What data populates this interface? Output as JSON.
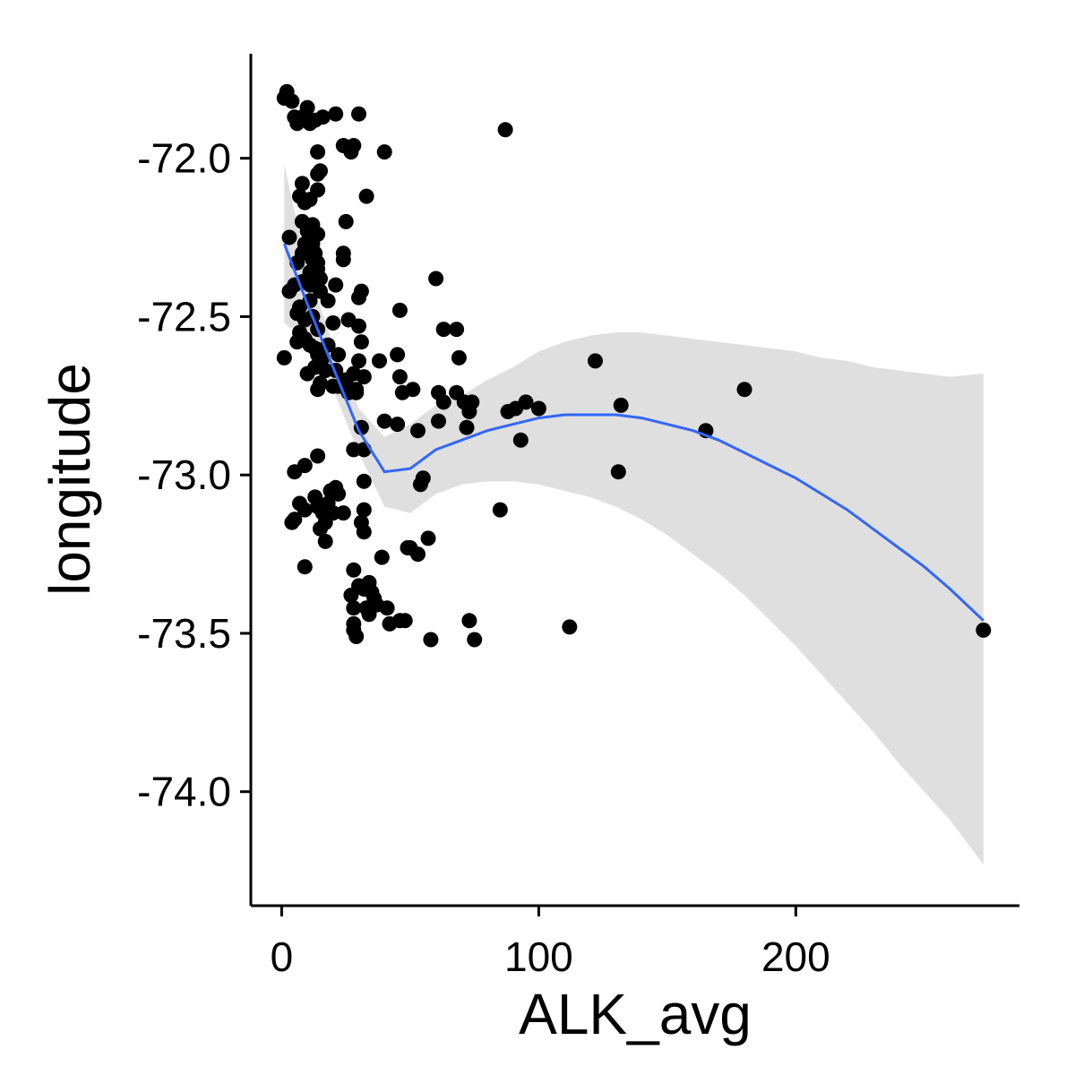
{
  "chart_data": {
    "type": "scatter",
    "title": "",
    "xlabel": "ALK_avg",
    "ylabel": "longitude",
    "xlim": [
      -12,
      287
    ],
    "ylim": [
      -74.36,
      -71.67
    ],
    "x_ticks": [
      0,
      100,
      200
    ],
    "x_tick_labels": [
      "0",
      "100",
      "200"
    ],
    "y_ticks": [
      -72.0,
      -72.5,
      -73.0,
      -73.5,
      -74.0
    ],
    "y_tick_labels": [
      "-72.0",
      "-72.5",
      "-73.0",
      "-73.5",
      "-74.0"
    ],
    "grid": false,
    "legend": "none",
    "colors": {
      "points": "#000000",
      "smooth_line": "#3366FF",
      "confidence_band": "#d9d9d9",
      "axes": "#000000"
    },
    "points": [
      [
        1,
        -71.81
      ],
      [
        2,
        -71.79
      ],
      [
        4,
        -71.82
      ],
      [
        5,
        -71.87
      ],
      [
        6,
        -71.89
      ],
      [
        8,
        -71.87
      ],
      [
        10,
        -71.84
      ],
      [
        11,
        -71.89
      ],
      [
        13,
        -71.88
      ],
      [
        16,
        -71.87
      ],
      [
        21,
        -71.86
      ],
      [
        30,
        -71.86
      ],
      [
        87,
        -71.91
      ],
      [
        14,
        -71.98
      ],
      [
        24,
        -71.96
      ],
      [
        28,
        -71.96
      ],
      [
        27,
        -71.98
      ],
      [
        40,
        -71.98
      ],
      [
        15,
        -72.04
      ],
      [
        14,
        -72.05
      ],
      [
        8,
        -72.08
      ],
      [
        14,
        -72.1
      ],
      [
        7,
        -72.12
      ],
      [
        11,
        -72.13
      ],
      [
        9,
        -72.14
      ],
      [
        33,
        -72.12
      ],
      [
        8,
        -72.2
      ],
      [
        12,
        -72.21
      ],
      [
        25,
        -72.2
      ],
      [
        10,
        -72.23
      ],
      [
        14,
        -72.24
      ],
      [
        12,
        -72.27
      ],
      [
        3,
        -72.25
      ],
      [
        9,
        -72.27
      ],
      [
        8,
        -72.3
      ],
      [
        13,
        -72.3
      ],
      [
        24,
        -72.3
      ],
      [
        12,
        -72.32
      ],
      [
        14,
        -72.33
      ],
      [
        6,
        -72.33
      ],
      [
        24,
        -72.32
      ],
      [
        14,
        -72.35
      ],
      [
        11,
        -72.36
      ],
      [
        15,
        -72.38
      ],
      [
        8,
        -72.39
      ],
      [
        5,
        -72.4
      ],
      [
        11,
        -72.4
      ],
      [
        60,
        -72.38
      ],
      [
        21,
        -72.4
      ],
      [
        15,
        -72.42
      ],
      [
        3,
        -72.42
      ],
      [
        31,
        -72.42
      ],
      [
        30,
        -72.44
      ],
      [
        11,
        -72.45
      ],
      [
        18,
        -72.45
      ],
      [
        7,
        -72.47
      ],
      [
        6,
        -72.49
      ],
      [
        9,
        -72.51
      ],
      [
        46,
        -72.48
      ],
      [
        12,
        -72.5
      ],
      [
        20,
        -72.52
      ],
      [
        26,
        -72.51
      ],
      [
        30,
        -72.53
      ],
      [
        63,
        -72.54
      ],
      [
        68,
        -72.54
      ],
      [
        14,
        -72.54
      ],
      [
        7,
        -72.55
      ],
      [
        9,
        -72.57
      ],
      [
        6,
        -72.58
      ],
      [
        11,
        -72.59
      ],
      [
        18,
        -72.59
      ],
      [
        31,
        -72.58
      ],
      [
        13,
        -72.6
      ],
      [
        14,
        -72.62
      ],
      [
        22,
        -72.62
      ],
      [
        16,
        -72.63
      ],
      [
        1,
        -72.63
      ],
      [
        30,
        -72.64
      ],
      [
        38,
        -72.64
      ],
      [
        45,
        -72.62
      ],
      [
        69,
        -72.63
      ],
      [
        122,
        -72.64
      ],
      [
        13,
        -72.66
      ],
      [
        17,
        -72.67
      ],
      [
        10,
        -72.68
      ],
      [
        21,
        -72.67
      ],
      [
        28,
        -72.68
      ],
      [
        46,
        -72.69
      ],
      [
        32,
        -72.69
      ],
      [
        15,
        -72.71
      ],
      [
        22,
        -72.72
      ],
      [
        25,
        -72.7
      ],
      [
        29,
        -72.73
      ],
      [
        14,
        -72.73
      ],
      [
        20,
        -72.72
      ],
      [
        26,
        -72.74
      ],
      [
        29,
        -72.74
      ],
      [
        47,
        -72.74
      ],
      [
        51,
        -72.73
      ],
      [
        61,
        -72.74
      ],
      [
        68,
        -72.74
      ],
      [
        180,
        -72.73
      ],
      [
        63,
        -72.77
      ],
      [
        71,
        -72.77
      ],
      [
        74,
        -72.77
      ],
      [
        95,
        -72.77
      ],
      [
        132,
        -72.78
      ],
      [
        91,
        -72.79
      ],
      [
        100,
        -72.79
      ],
      [
        73,
        -72.8
      ],
      [
        88,
        -72.8
      ],
      [
        40,
        -72.83
      ],
      [
        61,
        -72.83
      ],
      [
        45,
        -72.84
      ],
      [
        31,
        -72.85
      ],
      [
        53,
        -72.86
      ],
      [
        72,
        -72.85
      ],
      [
        165,
        -72.86
      ],
      [
        93,
        -72.89
      ],
      [
        28,
        -72.92
      ],
      [
        32,
        -72.92
      ],
      [
        14,
        -72.94
      ],
      [
        9,
        -72.97
      ],
      [
        5,
        -72.99
      ],
      [
        131,
        -72.99
      ],
      [
        55,
        -73.01
      ],
      [
        32,
        -73.02
      ],
      [
        54,
        -73.03
      ],
      [
        21,
        -73.04
      ],
      [
        19,
        -73.05
      ],
      [
        22,
        -73.06
      ],
      [
        13,
        -73.07
      ],
      [
        7,
        -73.09
      ],
      [
        18,
        -73.09
      ],
      [
        14,
        -73.1
      ],
      [
        9,
        -73.11
      ],
      [
        16,
        -73.12
      ],
      [
        85,
        -73.11
      ],
      [
        32,
        -73.11
      ],
      [
        20,
        -73.12
      ],
      [
        24,
        -73.12
      ],
      [
        5,
        -73.14
      ],
      [
        4,
        -73.15
      ],
      [
        31,
        -73.15
      ],
      [
        17,
        -73.15
      ],
      [
        15,
        -73.17
      ],
      [
        32,
        -73.18
      ],
      [
        17,
        -73.21
      ],
      [
        57,
        -73.2
      ],
      [
        49,
        -73.23
      ],
      [
        50,
        -73.23
      ],
      [
        53,
        -73.25
      ],
      [
        39,
        -73.26
      ],
      [
        9,
        -73.29
      ],
      [
        28,
        -73.3
      ],
      [
        34,
        -73.34
      ],
      [
        30,
        -73.35
      ],
      [
        32,
        -73.36
      ],
      [
        34,
        -73.36
      ],
      [
        35,
        -73.37
      ],
      [
        27,
        -73.38
      ],
      [
        36,
        -73.39
      ],
      [
        37,
        -73.41
      ],
      [
        33,
        -73.42
      ],
      [
        28,
        -73.42
      ],
      [
        41,
        -73.42
      ],
      [
        34,
        -73.44
      ],
      [
        48,
        -73.46
      ],
      [
        46,
        -73.46
      ],
      [
        73,
        -73.46
      ],
      [
        42,
        -73.47
      ],
      [
        28,
        -73.47
      ],
      [
        112,
        -73.48
      ],
      [
        28,
        -73.49
      ],
      [
        29,
        -73.51
      ],
      [
        273,
        -73.49
      ],
      [
        58,
        -73.52
      ],
      [
        75,
        -73.52
      ]
    ],
    "smooth": {
      "x": [
        1,
        10,
        20,
        30,
        40,
        50,
        60,
        70,
        80,
        90,
        100,
        110,
        120,
        130,
        140,
        150,
        160,
        170,
        180,
        190,
        200,
        210,
        220,
        230,
        240,
        250,
        260,
        273
      ],
      "y": [
        -72.27,
        -72.46,
        -72.66,
        -72.86,
        -72.99,
        -72.98,
        -72.92,
        -72.89,
        -72.86,
        -72.84,
        -72.82,
        -72.81,
        -72.81,
        -72.81,
        -72.82,
        -72.84,
        -72.86,
        -72.89,
        -72.93,
        -72.97,
        -73.01,
        -73.06,
        -73.11,
        -73.17,
        -73.23,
        -73.29,
        -73.36,
        -73.46
      ],
      "lower": [
        -72.52,
        -72.57,
        -72.73,
        -72.93,
        -73.1,
        -73.12,
        -73.06,
        -73.03,
        -73.02,
        -73.02,
        -73.03,
        -73.05,
        -73.07,
        -73.1,
        -73.14,
        -73.19,
        -73.25,
        -73.31,
        -73.38,
        -73.46,
        -73.54,
        -73.63,
        -73.72,
        -73.81,
        -73.91,
        -74.0,
        -74.09,
        -74.23
      ],
      "upper": [
        -72.02,
        -72.35,
        -72.59,
        -72.79,
        -72.88,
        -72.84,
        -72.78,
        -72.75,
        -72.7,
        -72.66,
        -72.61,
        -72.58,
        -72.56,
        -72.55,
        -72.55,
        -72.56,
        -72.57,
        -72.58,
        -72.59,
        -72.6,
        -72.61,
        -72.63,
        -72.64,
        -72.66,
        -72.67,
        -72.68,
        -72.69,
        -72.68
      ]
    }
  }
}
